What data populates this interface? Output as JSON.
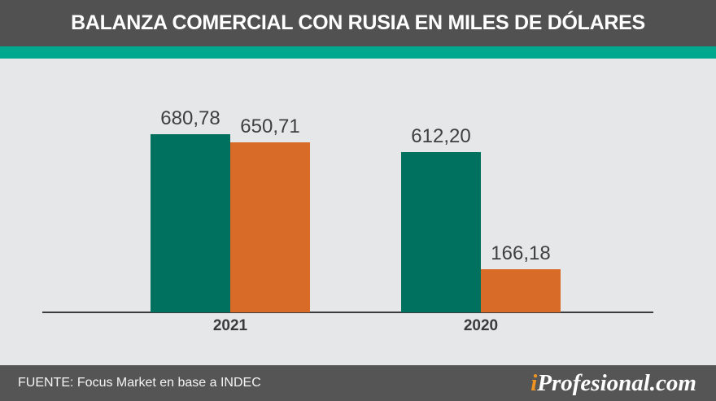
{
  "header": {
    "title": "BALANZA COMERCIAL CON RUSIA EN MILES DE DÓLARES"
  },
  "chart_data": {
    "type": "bar",
    "title": "BALANZA COMERCIAL CON RUSIA EN MILES DE DÓLARES",
    "categories": [
      "2021",
      "2020"
    ],
    "series": [
      {
        "key": "green",
        "color": "#00715f",
        "values": [
          680.78,
          612.2
        ],
        "labels": [
          "680,78",
          "612,20"
        ]
      },
      {
        "key": "orange",
        "color": "#d86b28",
        "values": [
          650.71,
          166.18
        ],
        "labels": [
          "650,71",
          "166,18"
        ]
      }
    ],
    "xlabel": "",
    "ylabel": "",
    "ylim": [
      0,
      700
    ],
    "grid": false,
    "legend": false,
    "value_labels": true,
    "decimal_separator": ","
  },
  "colors": {
    "header_bg": "#515151",
    "accent_stripe": "#00a98d",
    "chart_bg": "#e6e7e9",
    "footer_bg": "#555555",
    "bar_green": "#00715f",
    "bar_orange": "#d86b28",
    "brand_i_orange": "#ef9423"
  },
  "footer": {
    "source": "FUENTE: Focus Market en base a INDEC",
    "brand": {
      "prefix": "i",
      "rest": "Profesional.com"
    }
  }
}
